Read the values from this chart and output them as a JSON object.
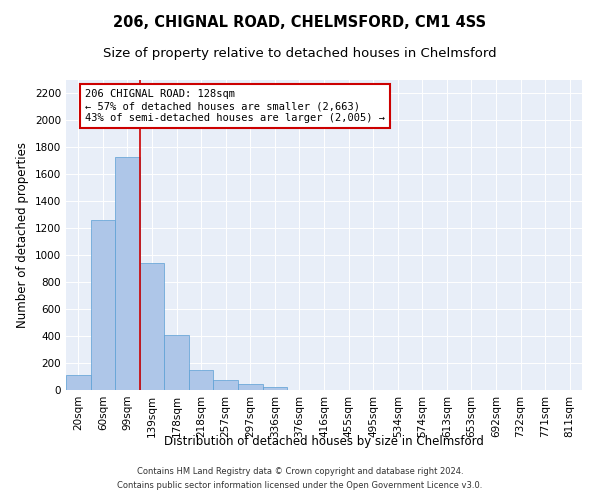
{
  "title1": "206, CHIGNAL ROAD, CHELMSFORD, CM1 4SS",
  "title2": "Size of property relative to detached houses in Chelmsford",
  "xlabel": "Distribution of detached houses by size in Chelmsford",
  "ylabel": "Number of detached properties",
  "footer1": "Contains HM Land Registry data © Crown copyright and database right 2024.",
  "footer2": "Contains public sector information licensed under the Open Government Licence v3.0.",
  "bin_labels": [
    "20sqm",
    "60sqm",
    "99sqm",
    "139sqm",
    "178sqm",
    "218sqm",
    "257sqm",
    "297sqm",
    "336sqm",
    "376sqm",
    "416sqm",
    "455sqm",
    "495sqm",
    "534sqm",
    "574sqm",
    "613sqm",
    "653sqm",
    "692sqm",
    "732sqm",
    "771sqm",
    "811sqm"
  ],
  "bar_values": [
    110,
    1265,
    1730,
    940,
    405,
    150,
    75,
    42,
    22,
    0,
    0,
    0,
    0,
    0,
    0,
    0,
    0,
    0,
    0,
    0,
    0
  ],
  "bar_color": "#aec6e8",
  "bar_edge_color": "#5a9fd4",
  "vline_color": "#cc0000",
  "annotation_text": "206 CHIGNAL ROAD: 128sqm\n← 57% of detached houses are smaller (2,663)\n43% of semi-detached houses are larger (2,005) →",
  "annotation_box_color": "#ffffff",
  "annotation_box_edge": "#cc0000",
  "annotation_fontsize": 7.5,
  "ylim": [
    0,
    2300
  ],
  "yticks": [
    0,
    200,
    400,
    600,
    800,
    1000,
    1200,
    1400,
    1600,
    1800,
    2000,
    2200
  ],
  "background_color": "#e8eef8",
  "title_fontsize": 10.5,
  "subtitle_fontsize": 9.5,
  "axis_label_fontsize": 8.5,
  "tick_fontsize": 7.5,
  "footer_fontsize": 6.0
}
